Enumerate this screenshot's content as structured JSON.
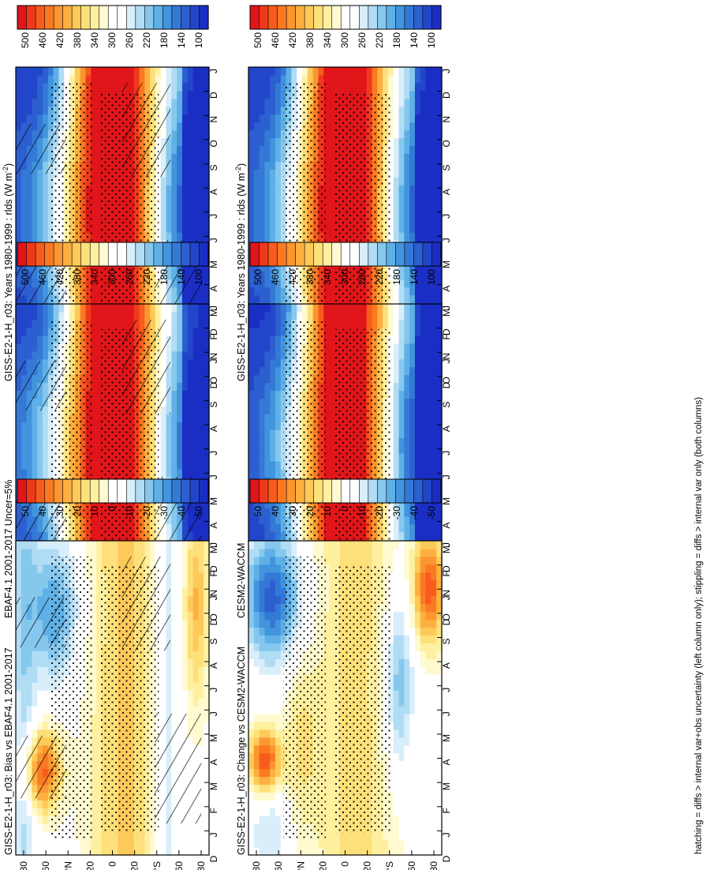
{
  "figure": {
    "footnote": "hatching = diffs > internal var+obs uncertainty (left column only); stippling = diffs > internal var only (both columns)"
  },
  "palettes": {
    "abs": [
      "#e0161a",
      "#f0391c",
      "#f75c1d",
      "#fa7a22",
      "#fb9630",
      "#fdb040",
      "#fdca5a",
      "#fee07a",
      "#fff0a0",
      "#fffad0",
      "#ffffff",
      "#ffffff",
      "#d8eefa",
      "#b0dcf4",
      "#86c7ee",
      "#5fb0e6",
      "#4294dd",
      "#3479d6",
      "#2c5fcf",
      "#2246c9",
      "#1a2ec4"
    ],
    "diff": [
      "#e0161a",
      "#f0391c",
      "#f75c1d",
      "#fa7a22",
      "#fb9630",
      "#fdb040",
      "#fdca5a",
      "#fee07a",
      "#fff0a0",
      "#fffad0",
      "#ffffff",
      "#ffffff",
      "#d8eefa",
      "#b0dcf4",
      "#86c7ee",
      "#5fb0e6",
      "#4294dd",
      "#3479d6",
      "#2c5fcf",
      "#2246c9",
      "#1a2ec4"
    ]
  },
  "chart_data": [
    {
      "type": "heatmap",
      "title": "GISS-E2-1-H_r03: Years 1980-1999 : rlds (W m",
      "title_sup": "-2",
      "title_tail": ")",
      "months": [
        "D",
        "J",
        "F",
        "M",
        "A",
        "M",
        "J",
        "J",
        "A",
        "S",
        "O",
        "N",
        "D",
        "J"
      ],
      "lat_ticks": [
        "80",
        "60",
        "°N",
        "20",
        "0",
        "20",
        "°S",
        "60",
        "80"
      ],
      "colorbar_ticks": [
        "500",
        "460",
        "420",
        "380",
        "340",
        "300",
        "260",
        "220",
        "180",
        "140",
        "100"
      ],
      "palette": "abs",
      "field": "abs_giss",
      "hatching": true
    },
    {
      "type": "heatmap",
      "title": "GISS-E2-1-H_r03: Years 1980-1999 : rlds (W m",
      "title_sup": "-2",
      "title_tail": ")",
      "months": [
        "D",
        "J",
        "F",
        "M",
        "A",
        "M",
        "J",
        "J",
        "A",
        "S",
        "O",
        "N",
        "D",
        "J"
      ],
      "lat_ticks": [
        "80",
        "60",
        "°N",
        "20",
        "0",
        "20",
        "°S",
        "60",
        "80"
      ],
      "colorbar_ticks": [
        "500",
        "460",
        "420",
        "380",
        "340",
        "300",
        "260",
        "220",
        "180",
        "140",
        "100"
      ],
      "palette": "abs",
      "field": "abs_giss",
      "hatching": false
    },
    {
      "type": "heatmap",
      "title": "EBAF4.1 2001-2017 Uncer=5%",
      "months": [
        "D",
        "J",
        "F",
        "M",
        "A",
        "M",
        "J",
        "J",
        "A",
        "S",
        "O",
        "N",
        "D",
        "J"
      ],
      "lat_ticks": [
        "80",
        "60",
        "°N",
        "20",
        "0",
        "20",
        "°S",
        "60",
        "80"
      ],
      "colorbar_ticks": [
        "500",
        "460",
        "420",
        "380",
        "340",
        "300",
        "260",
        "220",
        "180",
        "140",
        "100"
      ],
      "palette": "abs",
      "field": "abs_obs",
      "hatching": true
    },
    {
      "type": "heatmap",
      "title": "CESM2-WACCM",
      "months": [
        "D",
        "J",
        "F",
        "M",
        "A",
        "M",
        "J",
        "J",
        "A",
        "S",
        "O",
        "N",
        "D",
        "J"
      ],
      "lat_ticks": [
        "80",
        "60",
        "°N",
        "20",
        "0",
        "20",
        "°S",
        "60",
        "80"
      ],
      "colorbar_ticks": [
        "500",
        "460",
        "420",
        "380",
        "340",
        "300",
        "260",
        "220",
        "180",
        "140",
        "100"
      ],
      "palette": "abs",
      "field": "abs_cesm",
      "hatching": false
    },
    {
      "type": "heatmap",
      "title": "GISS-E2-1-H_r03: Bias vs EBAF4.1 2001-2017",
      "months": [
        "D",
        "J",
        "F",
        "M",
        "A",
        "M",
        "J",
        "J",
        "A",
        "S",
        "O",
        "N",
        "D",
        "J"
      ],
      "lat_ticks": [
        "80",
        "60",
        "°N",
        "20",
        "0",
        "20",
        "°S",
        "60",
        "80"
      ],
      "colorbar_ticks": [
        "50",
        "40",
        "30",
        "20",
        "10",
        "0",
        "-10",
        "-20",
        "-30",
        "-40",
        "-50"
      ],
      "palette": "diff",
      "field": "bias",
      "hatching": true
    },
    {
      "type": "heatmap",
      "title": "GISS-E2-1-H_r03: Change vs CESM2-WACCM",
      "months": [
        "D",
        "J",
        "F",
        "M",
        "A",
        "M",
        "J",
        "J",
        "A",
        "S",
        "O",
        "N",
        "D",
        "J"
      ],
      "lat_ticks": [
        "80",
        "60",
        "°N",
        "20",
        "0",
        "20",
        "°S",
        "60",
        "80"
      ],
      "colorbar_ticks": [
        "50",
        "40",
        "30",
        "20",
        "10",
        "0",
        "-10",
        "-20",
        "-30",
        "-40",
        "-50"
      ],
      "palette": "diff",
      "field": "change",
      "hatching": false
    }
  ]
}
